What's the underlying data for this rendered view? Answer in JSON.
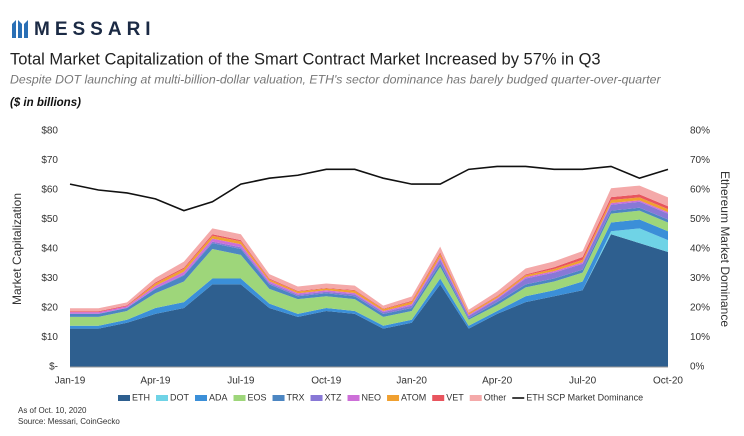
{
  "brand": "MESSARI",
  "chart_data": {
    "type": "stacked-area-line",
    "title": "Total Market Capitalization of the Smart Contract Market Increased by 57% in Q3",
    "subtitle": "Despite DOT launching at multi-billion-dollar valuation, ETH's sector dominance has barely budged quarter-over-quarter",
    "unit_label": "($ in billions)",
    "ylabel": "Market Capitalization",
    "y2label": "Ethereum Market Dominance",
    "categories": [
      "Jan-19",
      null,
      null,
      "Apr-19",
      null,
      null,
      "Jul-19",
      null,
      null,
      "Oct-19",
      null,
      null,
      "Jan-20",
      null,
      null,
      "Apr-20",
      null,
      null,
      "Jul-20",
      null,
      null,
      "Oct-20"
    ],
    "series": [
      {
        "name": "ETH",
        "color": "#2e5f8f",
        "values": [
          13,
          13,
          15,
          18,
          20,
          28,
          28,
          20,
          17,
          19,
          18,
          13,
          15,
          28,
          13,
          18,
          22,
          24,
          26,
          45,
          42,
          39
        ]
      },
      {
        "name": "DOT",
        "color": "#6fd3e6",
        "values": [
          0,
          0,
          0,
          0,
          0,
          0,
          0,
          0,
          0,
          0,
          0,
          0,
          0,
          0,
          0,
          0,
          0,
          0,
          0,
          1,
          5,
          4
        ]
      },
      {
        "name": "ADA",
        "color": "#3b8fd8",
        "values": [
          1,
          1,
          1,
          2,
          2,
          2,
          2,
          1.5,
          1,
          1,
          1,
          1,
          1,
          2,
          1,
          1,
          2,
          2,
          3,
          3,
          3,
          3
        ]
      },
      {
        "name": "EOS",
        "color": "#9ed67a",
        "values": [
          3,
          3,
          3,
          5,
          7,
          10,
          8,
          5,
          5,
          4,
          4,
          3,
          3,
          4,
          2,
          2,
          3,
          3,
          3,
          3,
          3,
          3
        ]
      },
      {
        "name": "TRX",
        "color": "#4c86c2",
        "values": [
          1,
          1,
          1,
          1.5,
          2,
          2,
          2,
          1.5,
          1,
          1,
          1,
          1,
          1,
          1,
          0.5,
          1,
          1,
          1,
          1,
          1,
          1,
          1
        ]
      },
      {
        "name": "XTZ",
        "color": "#8878d6",
        "values": [
          0.1,
          0.1,
          0.1,
          0.2,
          0.3,
          0.5,
          0.6,
          0.5,
          0.5,
          0.5,
          0.6,
          0.6,
          0.8,
          1.5,
          0.8,
          1,
          2,
          2,
          2,
          2,
          2,
          2
        ]
      },
      {
        "name": "NEO",
        "color": "#cd6fd8",
        "values": [
          0.5,
          0.5,
          0.5,
          0.8,
          1,
          1,
          1,
          0.6,
          0.5,
          0.5,
          0.5,
          0.4,
          0.5,
          0.8,
          0.4,
          0.4,
          0.5,
          0.5,
          0.5,
          0.6,
          0.5,
          0.5
        ]
      },
      {
        "name": "ATOM",
        "color": "#f0a030",
        "values": [
          0,
          0,
          0,
          0.8,
          1,
          1,
          1,
          0.6,
          0.6,
          0.6,
          0.8,
          0.6,
          0.8,
          1,
          0.5,
          0.5,
          0.6,
          0.7,
          0.8,
          1,
          1,
          1
        ]
      },
      {
        "name": "VET",
        "color": "#e8555e",
        "values": [
          0.3,
          0.3,
          0.3,
          0.4,
          0.4,
          0.5,
          0.4,
          0.3,
          0.2,
          0.2,
          0.2,
          0.2,
          0.3,
          0.5,
          0.2,
          0.2,
          0.3,
          0.6,
          1,
          1,
          1,
          1
        ]
      },
      {
        "name": "Other",
        "color": "#f4a9a9",
        "values": [
          1,
          1,
          1,
          1.5,
          2,
          2,
          2,
          1.5,
          1.5,
          1.5,
          1.5,
          1,
          1.5,
          2,
          1,
          1.5,
          2,
          2,
          2,
          3,
          3,
          3
        ]
      },
      {
        "name": "ETH SCP Market Dominance",
        "color": "#111111",
        "axis": "y2",
        "values": [
          62,
          60,
          59,
          57,
          53,
          56,
          62,
          64,
          65,
          67,
          67,
          64,
          62,
          62,
          67,
          68,
          68,
          67,
          67,
          68,
          64,
          67
        ]
      }
    ],
    "ylim": [
      0,
      80
    ],
    "yticks": [
      {
        "value": 0,
        "label": "$-"
      },
      {
        "value": 10,
        "label": "$10"
      },
      {
        "value": 20,
        "label": "$20"
      },
      {
        "value": 30,
        "label": "$30"
      },
      {
        "value": 40,
        "label": "$40"
      },
      {
        "value": 50,
        "label": "$50"
      },
      {
        "value": 60,
        "label": "$60"
      },
      {
        "value": 70,
        "label": "$70"
      },
      {
        "value": 80,
        "label": "$80"
      }
    ],
    "y2lim": [
      0,
      80
    ],
    "y2ticks": [
      {
        "value": 0,
        "label": "0%"
      },
      {
        "value": 10,
        "label": "10%"
      },
      {
        "value": 20,
        "label": "20%"
      },
      {
        "value": 30,
        "label": "30%"
      },
      {
        "value": 40,
        "label": "40%"
      },
      {
        "value": 50,
        "label": "50%"
      },
      {
        "value": 60,
        "label": "60%"
      },
      {
        "value": 70,
        "label": "70%"
      },
      {
        "value": 80,
        "label": "80%"
      }
    ],
    "legend": "bottom",
    "notes": [
      "As of Oct. 10, 2020",
      "Source: Messari, CoinGecko"
    ]
  }
}
